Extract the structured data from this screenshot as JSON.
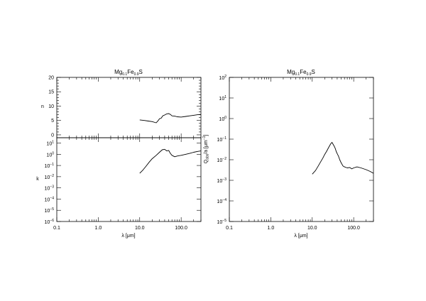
{
  "chart_data": [
    {
      "id": "n-panel",
      "type": "line",
      "title": "Mg0.1Fe0.9S",
      "title_main1": "Mg",
      "title_sub1": "0.1",
      "title_main2": "Fe",
      "title_sub2": "0.9",
      "title_main3": "S",
      "ylabel": "n",
      "xscale": "log",
      "yscale": "linear",
      "xlim": [
        0.1,
        300
      ],
      "ylim": [
        -1,
        20
      ],
      "yticks": [
        0,
        5,
        10,
        15,
        20
      ],
      "ytick_labels": [
        "0",
        "5",
        "10",
        "15",
        "20"
      ],
      "x": [
        10,
        13,
        16,
        20,
        25,
        28,
        30,
        33,
        36,
        40,
        45,
        50,
        55,
        60,
        70,
        80,
        100,
        130,
        160,
        200,
        250,
        300
      ],
      "y": [
        5.2,
        5.0,
        4.8,
        4.6,
        4.2,
        5.0,
        5.6,
        5.8,
        6.6,
        6.9,
        7.3,
        7.4,
        7.1,
        6.6,
        6.5,
        6.3,
        6.2,
        6.4,
        6.6,
        6.8,
        7.0,
        7.1
      ]
    },
    {
      "id": "k-panel",
      "type": "line",
      "ylabel": "k",
      "xlabel": "λ [μm]",
      "xscale": "log",
      "yscale": "log",
      "xlim": [
        0.1,
        300
      ],
      "ylim": [
        1e-06,
        30
      ],
      "yticks_exp": [
        1,
        0,
        -1,
        -2,
        -3,
        -4,
        -5,
        -6
      ],
      "xticks": [
        0.1,
        1,
        10,
        100
      ],
      "xtick_labels": [
        "0.1",
        "1.0",
        "10.0",
        "100.0"
      ],
      "x": [
        10,
        12,
        14,
        17,
        20,
        25,
        30,
        35,
        40,
        45,
        50,
        55,
        60,
        70,
        80,
        100,
        130,
        160,
        200,
        250,
        300
      ],
      "y": [
        0.02,
        0.04,
        0.08,
        0.2,
        0.4,
        0.8,
        1.5,
        2.5,
        2.8,
        2.0,
        2.2,
        1.2,
        0.8,
        0.6,
        0.7,
        0.8,
        1.0,
        1.2,
        1.5,
        1.8,
        2.0
      ]
    },
    {
      "id": "q-panel",
      "type": "line",
      "title": "Mg0.1Fe0.9S",
      "title_main1": "Mg",
      "title_sub1": "0.1",
      "title_main2": "Fe",
      "title_sub2": "0.9",
      "title_main3": "S",
      "ylabel_main": "Q",
      "ylabel_sub": "abs",
      "ylabel_rest": "/a [μm",
      "ylabel_sup": "−1",
      "ylabel_end": "]",
      "xlabel": "λ [μm]",
      "xscale": "log",
      "yscale": "log",
      "xlim": [
        0.1,
        300
      ],
      "ylim": [
        1e-05,
        100
      ],
      "yticks_exp": [
        2,
        1,
        0,
        -1,
        -2,
        -3,
        -4,
        -5
      ],
      "xticks": [
        0.1,
        1,
        10,
        100
      ],
      "xtick_labels": [
        "0.1",
        "1.0",
        "10.0",
        "100.0"
      ],
      "x": [
        10,
        12,
        14,
        16,
        18,
        20,
        22,
        25,
        28,
        30,
        32,
        34,
        36,
        38,
        40,
        43,
        46,
        50,
        55,
        60,
        70,
        80,
        90,
        100,
        120,
        150,
        200,
        250,
        300
      ],
      "y": [
        0.002,
        0.003,
        0.005,
        0.008,
        0.012,
        0.018,
        0.025,
        0.04,
        0.06,
        0.07,
        0.055,
        0.045,
        0.035,
        0.025,
        0.02,
        0.015,
        0.01,
        0.007,
        0.005,
        0.0045,
        0.004,
        0.0042,
        0.0036,
        0.004,
        0.0045,
        0.004,
        0.0033,
        0.0027,
        0.0022
      ]
    }
  ]
}
